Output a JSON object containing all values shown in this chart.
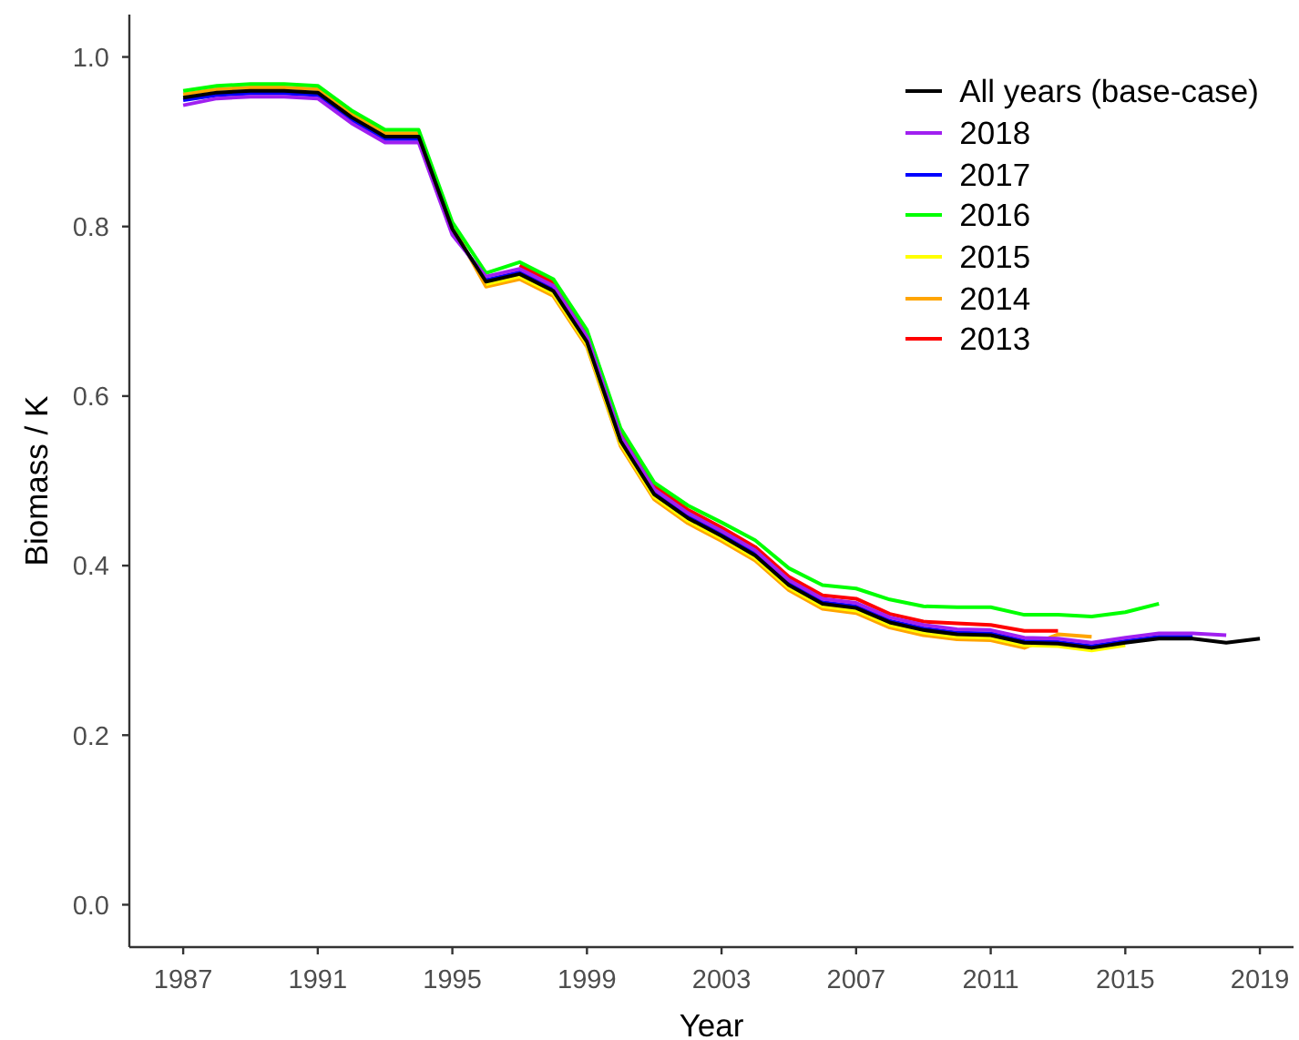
{
  "chart_data": {
    "type": "line",
    "xlabel": "Year",
    "ylabel": "Biomass / K",
    "x": [
      1987,
      1988,
      1989,
      1990,
      1991,
      1992,
      1993,
      1994,
      1995,
      1996,
      1997,
      1998,
      1999,
      2000,
      2001,
      2002,
      2003,
      2004,
      2005,
      2006,
      2007,
      2008,
      2009,
      2010,
      2011,
      2012,
      2013,
      2014,
      2015,
      2016,
      2017,
      2018,
      2019
    ],
    "xlim": [
      1985.4,
      2020.0
    ],
    "xticks": [
      1987,
      1991,
      1995,
      1999,
      2003,
      2007,
      2011,
      2015,
      2019
    ],
    "ylim": [
      -0.05,
      1.05
    ],
    "yticks": [
      {
        "value": 0,
        "label": "0.0"
      },
      0.2,
      0.4,
      0.6,
      0.8,
      {
        "value": 1,
        "label": "1.0"
      }
    ],
    "legend": "top right",
    "series": [
      {
        "name": "All years (base-case)",
        "color": "#000000",
        "values": [
          0.952,
          0.958,
          0.96,
          0.96,
          0.958,
          0.929,
          0.906,
          0.906,
          0.797,
          0.735,
          0.744,
          0.724,
          0.664,
          0.547,
          0.484,
          0.456,
          0.435,
          0.412,
          0.377,
          0.355,
          0.35,
          0.333,
          0.324,
          0.319,
          0.318,
          0.309,
          0.308,
          0.303,
          0.309,
          0.314,
          0.314,
          0.309,
          0.314
        ]
      },
      {
        "name": "2018",
        "color": "#a020f0",
        "values": [
          0.943,
          0.951,
          0.953,
          0.953,
          0.951,
          0.922,
          0.899,
          0.899,
          0.79,
          0.741,
          0.75,
          0.73,
          0.67,
          0.553,
          0.49,
          0.462,
          0.441,
          0.418,
          0.383,
          0.361,
          0.356,
          0.339,
          0.33,
          0.325,
          0.324,
          0.315,
          0.314,
          0.309,
          0.315,
          0.32,
          0.32,
          0.318,
          null
        ]
      },
      {
        "name": "2017",
        "color": "#0000ff",
        "values": [
          0.949,
          0.955,
          0.957,
          0.957,
          0.955,
          0.926,
          0.903,
          0.903,
          0.794,
          0.737,
          0.746,
          0.726,
          0.666,
          0.549,
          0.486,
          0.458,
          0.437,
          0.414,
          0.379,
          0.357,
          0.352,
          0.335,
          0.326,
          0.321,
          0.32,
          0.311,
          0.31,
          0.305,
          0.311,
          0.316,
          0.316,
          null,
          null
        ]
      },
      {
        "name": "2016",
        "color": "#00ff00",
        "values": [
          0.96,
          0.966,
          0.968,
          0.968,
          0.966,
          0.937,
          0.914,
          0.914,
          0.805,
          0.745,
          0.758,
          0.738,
          0.678,
          0.562,
          0.498,
          0.471,
          0.451,
          0.43,
          0.397,
          0.377,
          0.373,
          0.36,
          0.352,
          0.351,
          0.351,
          0.342,
          0.342,
          0.34,
          0.345,
          0.355,
          null,
          null,
          null
        ]
      },
      {
        "name": "2015",
        "color": "#ffff00",
        "values": [
          null,
          null,
          null,
          null,
          null,
          null,
          null,
          null,
          null,
          0.732,
          0.741,
          0.721,
          0.661,
          0.544,
          0.481,
          0.453,
          0.432,
          0.409,
          0.374,
          0.352,
          0.347,
          0.33,
          0.321,
          0.316,
          0.315,
          0.306,
          0.305,
          0.3,
          0.306,
          null,
          null,
          null,
          null
        ]
      },
      {
        "name": "2014",
        "color": "#ffa500",
        "values": [
          0.956,
          0.962,
          0.964,
          0.964,
          0.962,
          0.933,
          0.91,
          0.91,
          0.801,
          0.729,
          0.738,
          0.718,
          0.658,
          0.541,
          0.478,
          0.45,
          0.429,
          0.406,
          0.371,
          0.349,
          0.344,
          0.327,
          0.318,
          0.313,
          0.312,
          0.303,
          0.319,
          0.316,
          null,
          null,
          null,
          null,
          null
        ]
      },
      {
        "name": "2013",
        "color": "#ff0000",
        "values": [
          null,
          null,
          null,
          null,
          null,
          null,
          null,
          null,
          null,
          null,
          0.754,
          0.734,
          0.674,
          0.557,
          0.494,
          0.466,
          0.445,
          0.422,
          0.387,
          0.365,
          0.361,
          0.343,
          0.334,
          0.332,
          0.33,
          0.323,
          0.323,
          null,
          null,
          null,
          null,
          null,
          null
        ]
      }
    ]
  }
}
